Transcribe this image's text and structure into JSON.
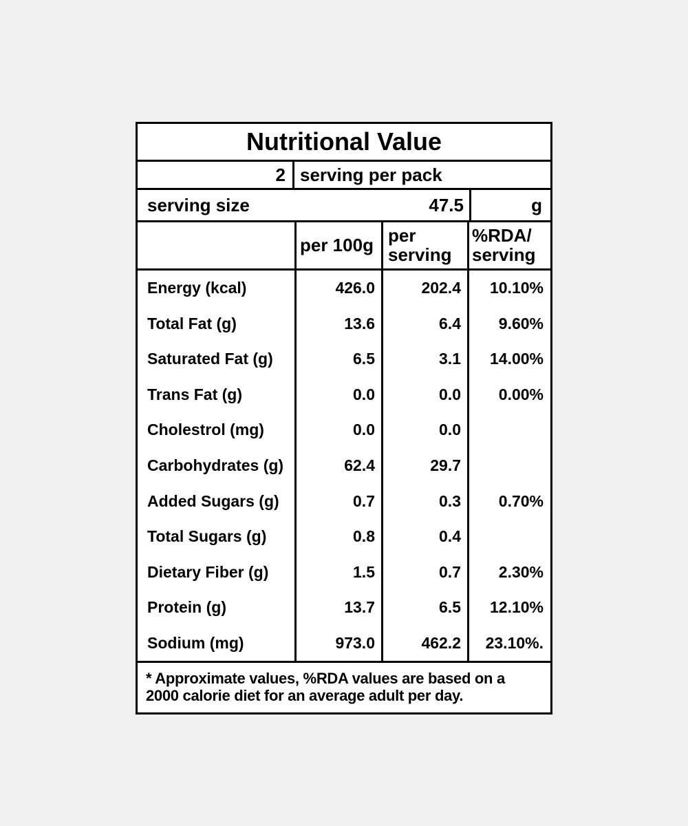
{
  "page": {
    "background_color": "#f0f0f1",
    "panel_background": "#ffffff",
    "border_color": "#000000",
    "text_color": "#000000"
  },
  "label": {
    "title": "Nutritional Value",
    "servings": {
      "count": "2",
      "text": "serving per pack"
    },
    "serving_size": {
      "label": "serving size",
      "value": "47.5",
      "unit": "g"
    },
    "columns": {
      "per_100g": "per 100g",
      "per_serving": "per\nserving",
      "rda_per_serving": "%RDA/\nserving"
    },
    "rows": [
      {
        "label": "Energy (kcal)",
        "per_100g": "426.0",
        "per_serving": "202.4",
        "rda": "10.10%"
      },
      {
        "label": "Total Fat (g)",
        "per_100g": "13.6",
        "per_serving": "6.4",
        "rda": "9.60%"
      },
      {
        "label": "Saturated Fat (g)",
        "per_100g": "6.5",
        "per_serving": "3.1",
        "rda": "14.00%"
      },
      {
        "label": "Trans Fat (g)",
        "per_100g": "0.0",
        "per_serving": "0.0",
        "rda": "0.00%"
      },
      {
        "label": "Cholestrol (mg)",
        "per_100g": "0.0",
        "per_serving": "0.0",
        "rda": ""
      },
      {
        "label": "Carbohydrates (g)",
        "per_100g": "62.4",
        "per_serving": "29.7",
        "rda": ""
      },
      {
        "label": "Added Sugars (g)",
        "per_100g": "0.7",
        "per_serving": "0.3",
        "rda": "0.70%"
      },
      {
        "label": "Total Sugars (g)",
        "per_100g": "0.8",
        "per_serving": "0.4",
        "rda": ""
      },
      {
        "label": "Dietary Fiber (g)",
        "per_100g": "1.5",
        "per_serving": "0.7",
        "rda": "2.30%"
      },
      {
        "label": "Protein (g)",
        "per_100g": "13.7",
        "per_serving": "6.5",
        "rda": "12.10%"
      },
      {
        "label": "Sodium (mg)",
        "per_100g": "973.0",
        "per_serving": "462.2",
        "rda": "23.10%."
      }
    ],
    "footnote": "* Approximate values, %RDA values are based on a\n2000 calorie diet for an average adult per day."
  }
}
